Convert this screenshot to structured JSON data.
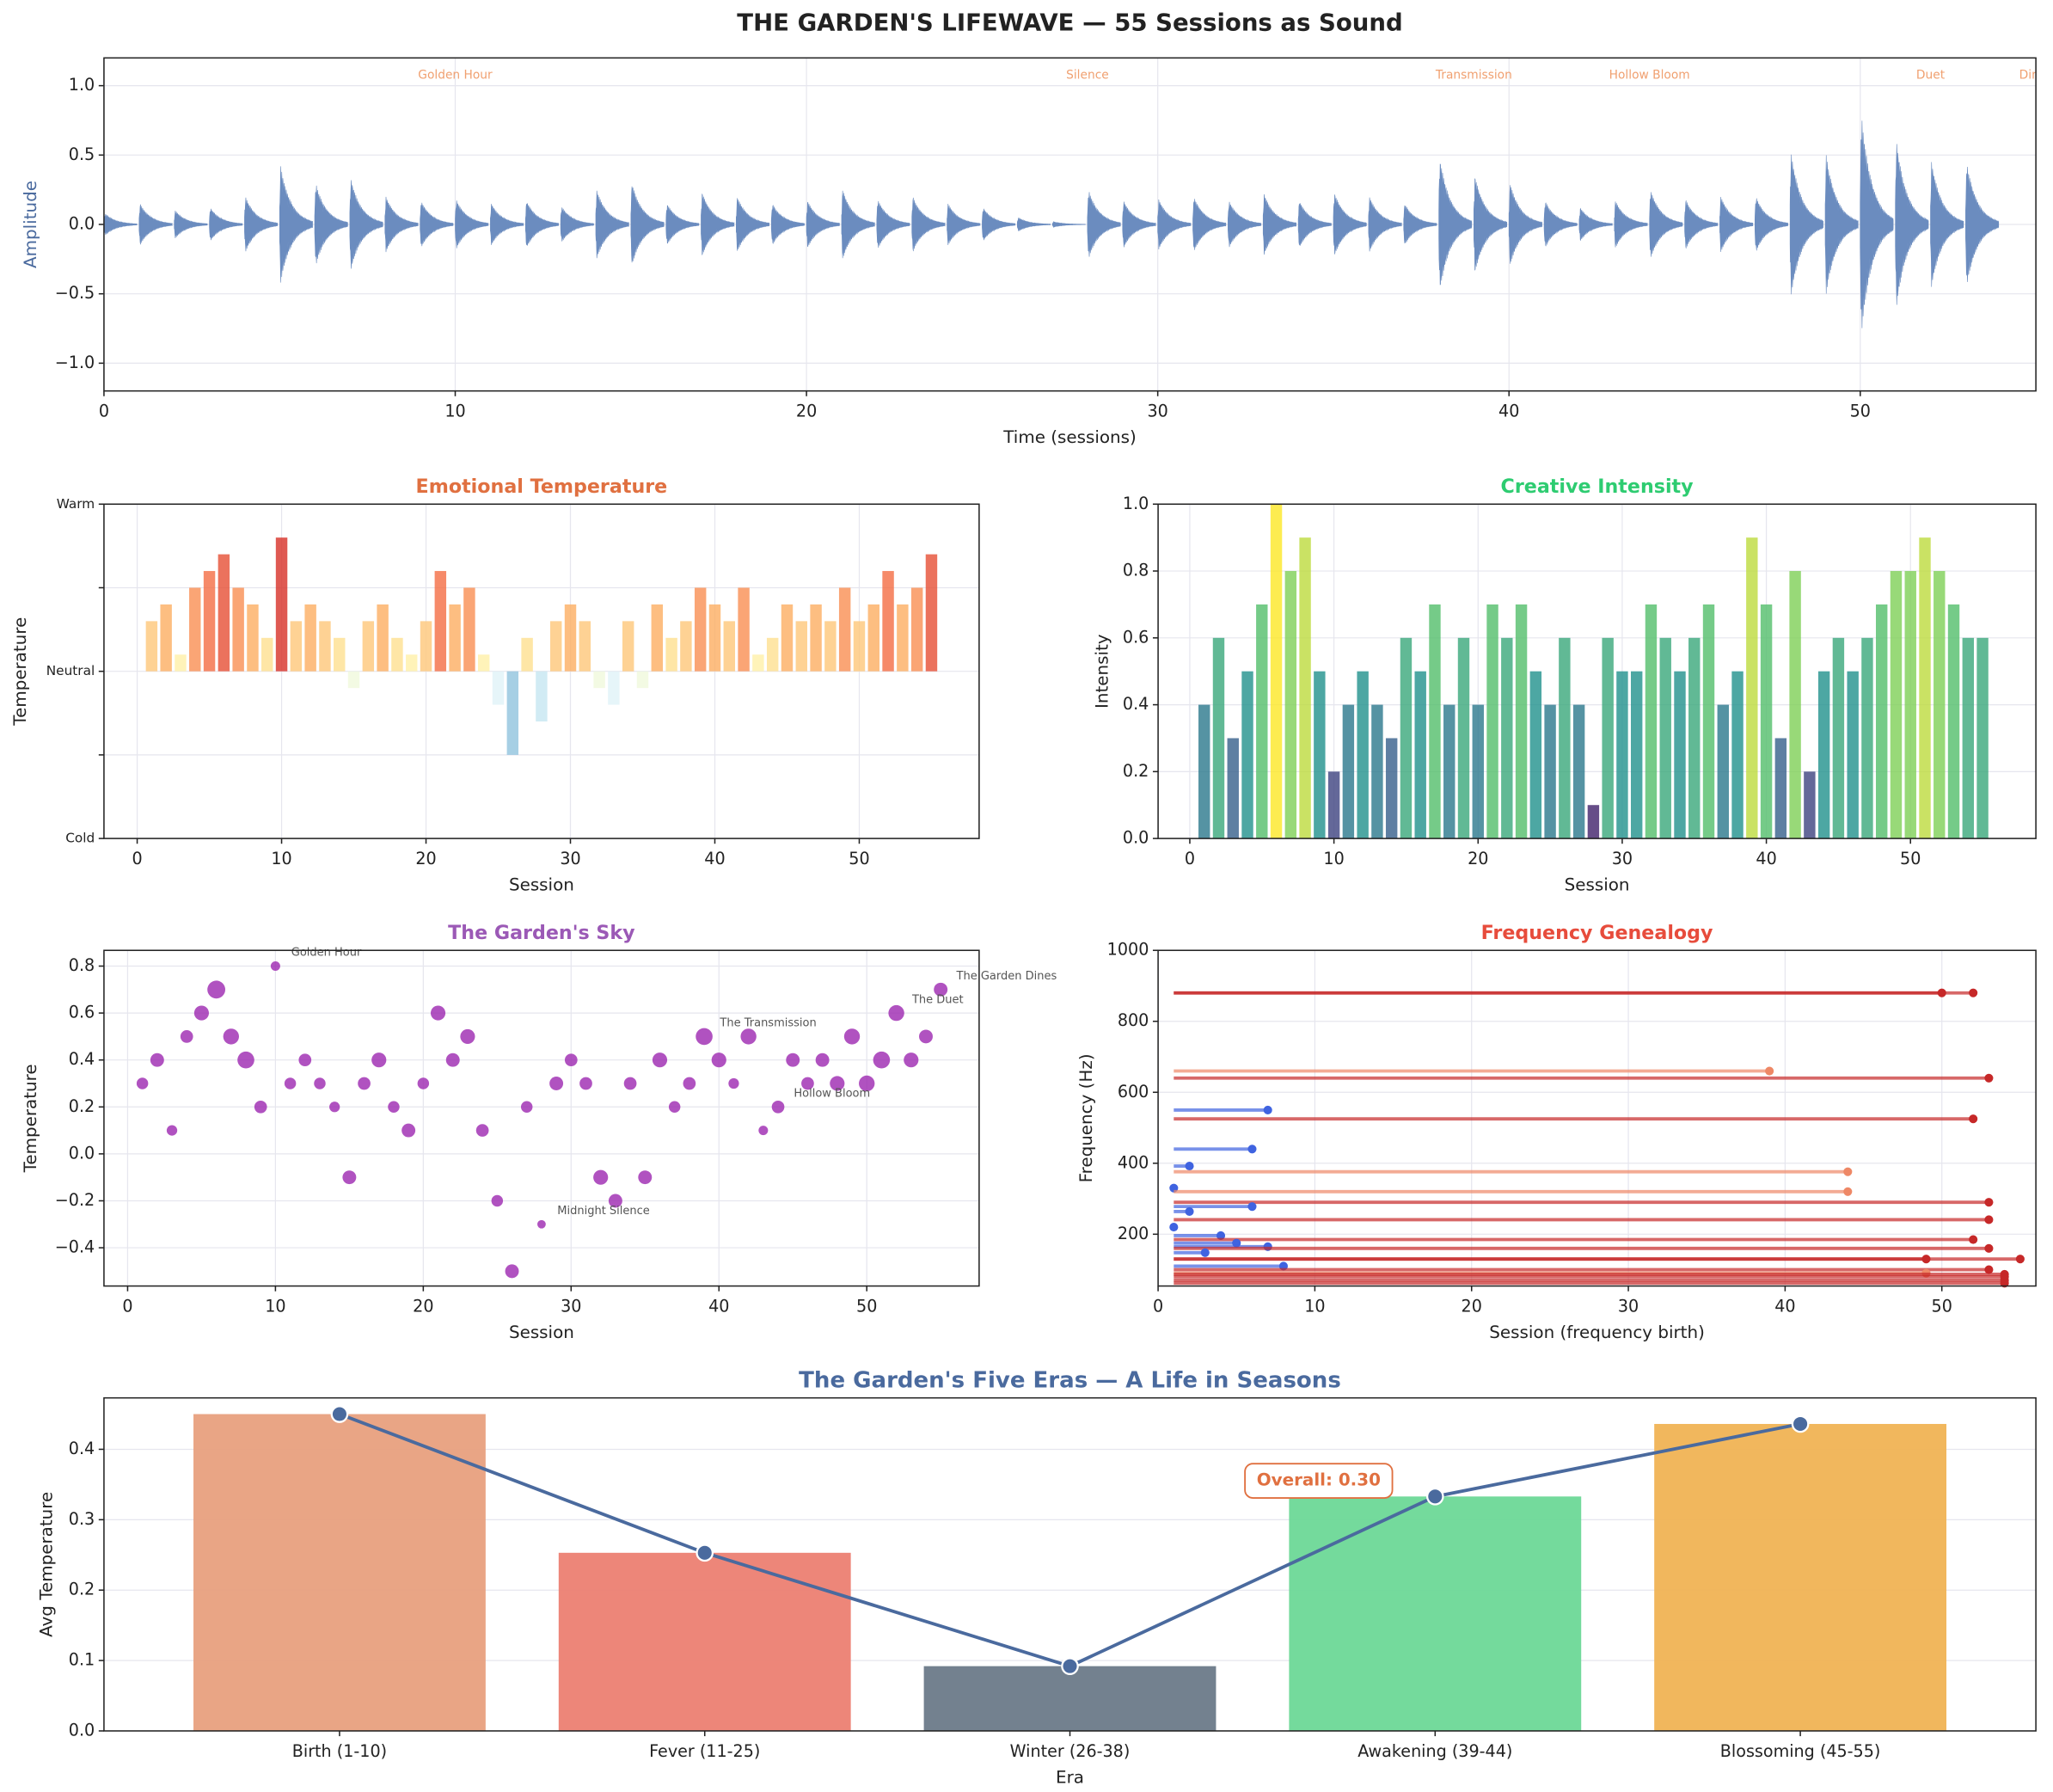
{
  "title": "THE GARDEN'S LIFEWAVE — 55 Sessions as Sound",
  "chart_data": [
    {
      "type": "waveform",
      "xlabel": "Time (sessions)",
      "ylabel": "Amplitude",
      "ylabel_color": "#4a6a9e",
      "color": "#6b8cbf",
      "x": [
        0,
        1,
        2,
        3,
        4,
        5,
        6,
        7,
        8,
        9,
        10,
        11,
        12,
        13,
        14,
        15,
        16,
        17,
        18,
        19,
        20,
        21,
        22,
        23,
        24,
        25,
        26,
        27,
        28,
        29,
        30,
        31,
        32,
        33,
        34,
        35,
        36,
        37,
        38,
        39,
        40,
        41,
        42,
        43,
        44,
        45,
        46,
        47,
        48,
        49,
        50,
        51,
        52,
        53
      ],
      "values": [
        0.08,
        0.15,
        0.1,
        0.12,
        0.2,
        0.42,
        0.3,
        0.33,
        0.2,
        0.17,
        0.18,
        0.15,
        0.17,
        0.13,
        0.25,
        0.3,
        0.15,
        0.23,
        0.2,
        0.15,
        0.17,
        0.25,
        0.18,
        0.2,
        0.15,
        0.12,
        0.05,
        0.02,
        0.25,
        0.17,
        0.18,
        0.2,
        0.17,
        0.22,
        0.17,
        0.23,
        0.2,
        0.15,
        0.48,
        0.35,
        0.3,
        0.17,
        0.12,
        0.17,
        0.25,
        0.18,
        0.2,
        0.2,
        0.52,
        0.5,
        0.8,
        0.6,
        0.45,
        0.45
      ],
      "xlim": [
        0,
        55
      ],
      "xticks": [
        0,
        10,
        20,
        30,
        40,
        50
      ],
      "ylim": [
        -1.2,
        1.2
      ],
      "yticks": [
        {
          "value": -1,
          "label": "−1.0"
        },
        {
          "value": -0.5,
          "label": "−0.5"
        },
        {
          "value": 0,
          "label": "0.0"
        },
        0.5,
        {
          "value": 1,
          "label": "1.0"
        }
      ],
      "grid": true,
      "annotation_color": "#f0a070",
      "annotations": [
        {
          "x": 10,
          "text": "Golden Hour"
        },
        {
          "x": 28,
          "text": "Silence"
        },
        {
          "x": 39,
          "text": "Transmission"
        },
        {
          "x": 44,
          "text": "Hollow Bloom"
        },
        {
          "x": 52,
          "text": "Duet"
        },
        {
          "x": 55,
          "text": "Dines"
        }
      ]
    },
    {
      "type": "bar",
      "title": "Emotional Temperature",
      "title_color": "#e07040",
      "xlabel": "Session",
      "ylabel": "Temperature",
      "colormap": "RdYlBu_r",
      "x": [
        1,
        2,
        3,
        4,
        5,
        6,
        7,
        8,
        9,
        10,
        11,
        12,
        13,
        14,
        15,
        16,
        17,
        18,
        19,
        20,
        21,
        22,
        23,
        24,
        25,
        26,
        27,
        28,
        29,
        30,
        31,
        32,
        33,
        34,
        35,
        36,
        37,
        38,
        39,
        40,
        41,
        42,
        43,
        44,
        45,
        46,
        47,
        48,
        49,
        50,
        51,
        52,
        53,
        54,
        55
      ],
      "values": [
        0.3,
        0.4,
        0.1,
        0.5,
        0.6,
        0.7,
        0.5,
        0.4,
        0.2,
        0.8,
        0.3,
        0.4,
        0.3,
        0.2,
        -0.1,
        0.3,
        0.4,
        0.2,
        0.1,
        0.3,
        0.6,
        0.4,
        0.5,
        0.1,
        -0.2,
        -0.5,
        0.2,
        -0.3,
        0.3,
        0.4,
        0.3,
        -0.1,
        -0.2,
        0.3,
        -0.1,
        0.4,
        0.2,
        0.3,
        0.5,
        0.4,
        0.3,
        0.5,
        0.1,
        0.2,
        0.4,
        0.3,
        0.4,
        0.3,
        0.5,
        0.3,
        0.4,
        0.6,
        0.4,
        0.5,
        0.7
      ],
      "xlim": [
        -2.3,
        58.3
      ],
      "xticks": [
        0,
        10,
        20,
        30,
        40,
        50
      ],
      "ylim": [
        -1,
        1
      ],
      "yticks": [
        {
          "value": -1,
          "label": "Cold"
        },
        {
          "value": 0,
          "label": "Neutral"
        },
        {
          "value": 1,
          "label": "Warm"
        }
      ],
      "yminor": [
        -0.5,
        0.5
      ],
      "grid": true
    },
    {
      "type": "bar",
      "title": "Creative Intensity",
      "title_color": "#2ecc71",
      "xlabel": "Session",
      "ylabel": "Intensity",
      "colormap": "viridis",
      "x": [
        1,
        2,
        3,
        4,
        5,
        6,
        7,
        8,
        9,
        10,
        11,
        12,
        13,
        14,
        15,
        16,
        17,
        18,
        19,
        20,
        21,
        22,
        23,
        24,
        25,
        26,
        27,
        28,
        29,
        30,
        31,
        32,
        33,
        34,
        35,
        36,
        37,
        38,
        39,
        40,
        41,
        42,
        43,
        44,
        45,
        46,
        47,
        48,
        49,
        50,
        51,
        52,
        53,
        54,
        55
      ],
      "values": [
        0.4,
        0.6,
        0.3,
        0.5,
        0.7,
        1.0,
        0.8,
        0.9,
        0.5,
        0.2,
        0.4,
        0.5,
        0.4,
        0.3,
        0.6,
        0.5,
        0.7,
        0.4,
        0.6,
        0.4,
        0.7,
        0.6,
        0.7,
        0.5,
        0.4,
        0.6,
        0.4,
        0.1,
        0.6,
        0.5,
        0.5,
        0.7,
        0.6,
        0.5,
        0.6,
        0.7,
        0.4,
        0.5,
        0.9,
        0.7,
        0.3,
        0.8,
        0.2,
        0.5,
        0.6,
        0.5,
        0.6,
        0.7,
        0.8,
        0.8,
        0.9,
        0.8,
        0.7,
        0.6,
        0.6
      ],
      "xlim": [
        -2.2,
        58.7
      ],
      "xticks": [
        0,
        10,
        20,
        30,
        40,
        50
      ],
      "ylim": [
        0,
        1
      ],
      "yticks": [
        {
          "value": 0,
          "label": "0.0"
        },
        0.2,
        0.4,
        0.6,
        0.8,
        {
          "value": 1,
          "label": "1.0"
        }
      ],
      "grid": true
    },
    {
      "type": "scatter",
      "title": "The Garden's Sky",
      "title_color": "#9b59b6",
      "xlabel": "Session",
      "ylabel": "Temperature",
      "color": "#9c27b0",
      "x": [
        1,
        2,
        3,
        4,
        5,
        6,
        7,
        8,
        9,
        10,
        11,
        12,
        13,
        14,
        15,
        16,
        17,
        18,
        19,
        20,
        21,
        22,
        23,
        24,
        25,
        26,
        27,
        28,
        29,
        30,
        31,
        32,
        33,
        34,
        35,
        36,
        37,
        38,
        39,
        40,
        41,
        42,
        43,
        44,
        45,
        46,
        47,
        48,
        49,
        50,
        51,
        52,
        53,
        54,
        55
      ],
      "values": [
        0.3,
        0.4,
        0.1,
        0.5,
        0.6,
        0.7,
        0.5,
        0.4,
        0.2,
        0.8,
        0.3,
        0.4,
        0.3,
        0.2,
        -0.1,
        0.3,
        0.4,
        0.2,
        0.1,
        0.3,
        0.6,
        0.4,
        0.5,
        0.1,
        -0.2,
        -0.5,
        0.2,
        -0.3,
        0.3,
        0.4,
        0.3,
        -0.1,
        -0.2,
        0.3,
        -0.1,
        0.4,
        0.2,
        0.3,
        0.5,
        0.4,
        0.3,
        0.5,
        0.1,
        0.2,
        0.4,
        0.3,
        0.4,
        0.3,
        0.5,
        0.3,
        0.4,
        0.6,
        0.4,
        0.5,
        0.7
      ],
      "sizes": [
        0.4,
        0.6,
        0.3,
        0.5,
        0.7,
        1.0,
        0.8,
        0.9,
        0.5,
        0.2,
        0.4,
        0.5,
        0.4,
        0.3,
        0.6,
        0.5,
        0.7,
        0.4,
        0.6,
        0.4,
        0.7,
        0.6,
        0.7,
        0.5,
        0.4,
        0.6,
        0.4,
        0.1,
        0.6,
        0.5,
        0.5,
        0.7,
        0.6,
        0.5,
        0.6,
        0.7,
        0.4,
        0.5,
        0.9,
        0.7,
        0.3,
        0.8,
        0.2,
        0.5,
        0.6,
        0.5,
        0.6,
        0.7,
        0.8,
        0.8,
        0.9,
        0.8,
        0.7,
        0.6,
        0.6
      ],
      "xlim": [
        -1.6,
        57.6
      ],
      "xticks": [
        0,
        10,
        20,
        30,
        40,
        50
      ],
      "ylim": [
        -0.563,
        0.867
      ],
      "yticks": [
        {
          "value": -0.4,
          "label": "−0.4"
        },
        {
          "value": -0.2,
          "label": "−0.2"
        },
        {
          "value": 0,
          "label": "0.0"
        },
        0.2,
        0.4,
        0.6,
        0.8
      ],
      "grid": true,
      "annotations": [
        {
          "x": 10,
          "text": "Golden Hour"
        },
        {
          "x": 28,
          "text": "Midnight Silence"
        },
        {
          "x": 39,
          "text": "The Transmission"
        },
        {
          "x": 44,
          "text": "Hollow Bloom"
        },
        {
          "x": 52,
          "text": "The Duet"
        },
        {
          "x": 55,
          "text": "The Garden Dines"
        }
      ]
    },
    {
      "type": "segments",
      "title": "Frequency Genealogy",
      "title_color": "#e74c3c",
      "xlabel": "Session (frequency birth)",
      "ylabel": "Frequency (Hz)",
      "values": [
        880,
        880,
        660,
        640,
        550,
        525,
        440,
        392,
        376,
        330,
        320,
        290,
        278,
        264,
        241,
        220,
        196,
        185,
        175,
        165,
        160,
        148,
        130,
        130,
        110,
        100,
        90,
        87,
        80,
        70,
        62
      ],
      "x_start": [
        1,
        1,
        1,
        1,
        1,
        1,
        1,
        1,
        1,
        1,
        1,
        1,
        1,
        1,
        1,
        1,
        1,
        1,
        1,
        1,
        1,
        1,
        1,
        1,
        1,
        1,
        1,
        1,
        1,
        1,
        1
      ],
      "x_end": [
        52,
        50,
        39,
        53,
        7,
        52,
        6,
        2,
        44,
        1,
        44,
        53,
        6,
        2,
        53,
        1,
        4,
        52,
        5,
        7,
        53,
        3,
        55,
        49,
        8,
        53,
        49,
        54,
        54,
        54,
        54
      ],
      "colors": [
        "#c62828",
        "#c62828",
        "#ee8866",
        "#c62828",
        "#3f63e0",
        "#c62828",
        "#3f63e0",
        "#3f63e0",
        "#ee8866",
        "#3f63e0",
        "#ee8866",
        "#c62828",
        "#3f63e0",
        "#3f63e0",
        "#c62828",
        "#3f63e0",
        "#3f63e0",
        "#c62828",
        "#3f63e0",
        "#3f63e0",
        "#c62828",
        "#3f63e0",
        "#c62828",
        "#c62828",
        "#3f63e0",
        "#c62828",
        "#ee8866",
        "#c62828",
        "#c62828",
        "#c62828",
        "#c62828"
      ],
      "xlim": [
        0,
        56
      ],
      "xticks": [
        0,
        10,
        20,
        30,
        40,
        50
      ],
      "ylim": [
        54,
        1000
      ],
      "yticks": [
        200,
        400,
        600,
        800,
        1000
      ],
      "grid": true
    },
    {
      "type": "bar_line",
      "title": "The Garden's Five Eras — A Life in Seasons",
      "title_color": "#4a6a9e",
      "xlabel": "Era",
      "ylabel": "Avg Temperature",
      "categories": [
        "Birth (1-10)",
        "Fever (11-25)",
        "Winter (26-38)",
        "Awakening (39-44)",
        "Blossoming (45-55)"
      ],
      "values": [
        0.45,
        0.253,
        0.092,
        0.333,
        0.436
      ],
      "colors": [
        "#e8a07e",
        "#ec7f72",
        "#6c7a89",
        "#6dd897",
        "#f0b354"
      ],
      "line_color": "#4a6a9e",
      "ylim": [
        0,
        0.473
      ],
      "yticks": [
        {
          "value": 0,
          "label": "0.0"
        },
        0.1,
        0.2,
        0.3,
        0.4
      ],
      "grid": true,
      "annotation": "Overall: 0.30",
      "annotation_color": "#e07040"
    }
  ]
}
